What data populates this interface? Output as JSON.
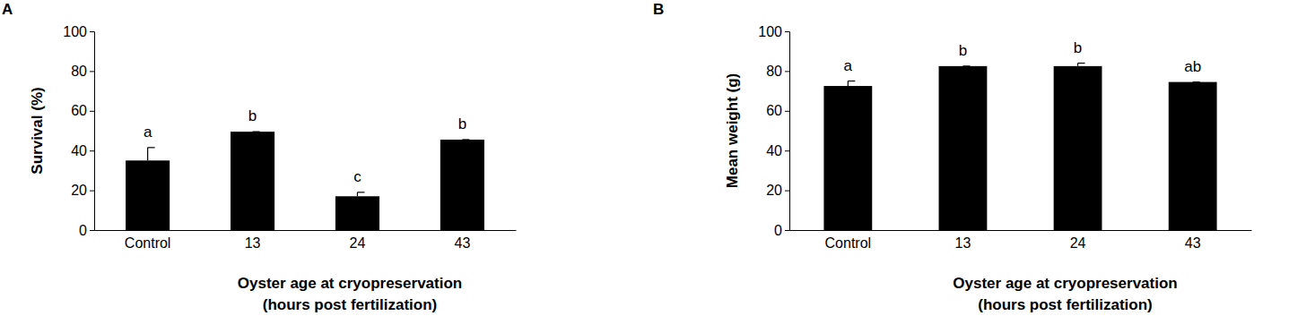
{
  "chart_data": [
    {
      "type": "bar",
      "title": "A",
      "x_label": [
        "Oyster age at cryopreservation",
        "(hours post fertilization)"
      ],
      "y_label": "Survival (%)",
      "categories": [
        "Control",
        "13",
        "24",
        "43"
      ],
      "values": [
        35,
        49.5,
        17,
        45.5
      ],
      "errors": [
        6.5,
        0,
        2,
        0
      ],
      "annotations": [
        "a",
        "b",
        "c",
        "b"
      ],
      "color": "#000000",
      "ylim": [
        0,
        100
      ],
      "yticks": [
        0,
        20,
        40,
        60,
        80,
        100
      ],
      "grid": false
    },
    {
      "type": "bar",
      "title": "B",
      "x_label": [
        "Oyster age at cryopreservation",
        "(hours post fertilization)"
      ],
      "y_label": "Mean weight (g)",
      "categories": [
        "Control",
        "13",
        "24",
        "43"
      ],
      "values": [
        72.5,
        82.5,
        82.5,
        74.5
      ],
      "errors": [
        2.5,
        0,
        1.5,
        0
      ],
      "annotations": [
        "a",
        "b",
        "b",
        "ab"
      ],
      "color": "#000000",
      "ylim": [
        0,
        100
      ],
      "yticks": [
        0,
        20,
        40,
        60,
        80,
        100
      ],
      "grid": false
    }
  ]
}
